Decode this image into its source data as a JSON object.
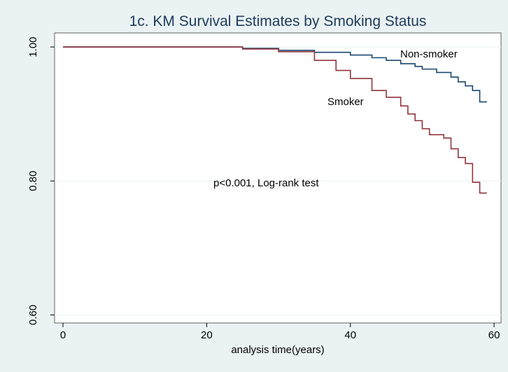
{
  "chart_data": {
    "type": "line",
    "step": "post",
    "title": "1c. KM Survival Estimates by Smoking Status",
    "x_label": "analysis time(years)",
    "annotations": [
      "Non-smoker",
      "Smoker",
      "p<0.001, Log-rank test"
    ],
    "xlim": [
      -1.17,
      60.96
    ],
    "xticks": [
      0,
      20,
      40,
      60
    ],
    "ylim": [
      0.588,
      1.021
    ],
    "yticks": [
      {
        "value": 0.6,
        "label": "0.60"
      },
      {
        "value": 0.8,
        "label": "0.80"
      },
      {
        "value": 1.0,
        "label": "1.00"
      }
    ],
    "grid": true,
    "series": [
      {
        "name": "Non-smoker",
        "color": "#1a476f",
        "x": [
          0,
          18,
          25,
          30,
          35,
          40,
          43,
          45,
          47,
          49,
          50,
          52,
          54,
          55,
          56,
          57,
          58,
          59
        ],
        "values": [
          1.0,
          1.0,
          0.998,
          0.995,
          0.992,
          0.988,
          0.984,
          0.98,
          0.975,
          0.971,
          0.967,
          0.962,
          0.955,
          0.948,
          0.942,
          0.935,
          0.918,
          0.918
        ]
      },
      {
        "name": "Smoker",
        "color": "#90353b",
        "x": [
          0,
          18,
          25,
          30,
          35,
          38,
          40,
          43,
          45,
          47,
          48,
          49,
          50,
          51,
          53,
          54,
          55,
          56,
          57,
          58,
          59
        ],
        "values": [
          1.0,
          1.0,
          0.997,
          0.993,
          0.98,
          0.965,
          0.953,
          0.935,
          0.925,
          0.912,
          0.9,
          0.89,
          0.878,
          0.869,
          0.864,
          0.848,
          0.835,
          0.826,
          0.798,
          0.782,
          0.782
        ]
      }
    ]
  }
}
